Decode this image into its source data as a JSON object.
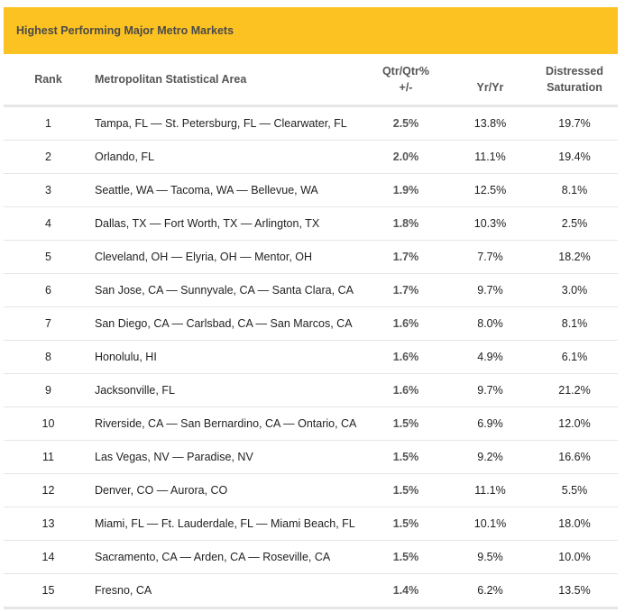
{
  "title": "Highest Performing Major Metro Markets",
  "colors": {
    "banner": "#fcc221",
    "header_text": "#555555",
    "divider": "#e6e6e6"
  },
  "columns": {
    "rank": "Rank",
    "area": "Metropolitan Statistical Area",
    "qtr_line1": "Qtr/Qtr%",
    "qtr_line2": "+/-",
    "yr": "Yr/Yr",
    "dist_line1": "Distressed",
    "dist_line2": "Saturation"
  },
  "rows": [
    {
      "rank": "1",
      "area": "Tampa, FL — St. Petersburg, FL — Clearwater, FL",
      "qtr": "2.5%",
      "yr": "13.8%",
      "dist": "19.7%"
    },
    {
      "rank": "2",
      "area": "Orlando, FL",
      "qtr": "2.0%",
      "yr": "11.1%",
      "dist": "19.4%"
    },
    {
      "rank": "3",
      "area": "Seattle, WA — Tacoma, WA — Bellevue, WA",
      "qtr": "1.9%",
      "yr": "12.5%",
      "dist": "8.1%"
    },
    {
      "rank": "4",
      "area": "Dallas, TX — Fort Worth, TX — Arlington, TX",
      "qtr": "1.8%",
      "yr": "10.3%",
      "dist": "2.5%"
    },
    {
      "rank": "5",
      "area": "Cleveland, OH — Elyria, OH — Mentor, OH",
      "qtr": "1.7%",
      "yr": "7.7%",
      "dist": "18.2%"
    },
    {
      "rank": "6",
      "area": "San Jose, CA — Sunnyvale, CA — Santa Clara, CA",
      "qtr": "1.7%",
      "yr": "9.7%",
      "dist": "3.0%"
    },
    {
      "rank": "7",
      "area": "San Diego, CA — Carlsbad, CA — San Marcos, CA",
      "qtr": "1.6%",
      "yr": "8.0%",
      "dist": "8.1%"
    },
    {
      "rank": "8",
      "area": "Honolulu, HI",
      "qtr": "1.6%",
      "yr": "4.9%",
      "dist": "6.1%"
    },
    {
      "rank": "9",
      "area": "Jacksonville, FL",
      "qtr": "1.6%",
      "yr": "9.7%",
      "dist": "21.2%"
    },
    {
      "rank": "10",
      "area": "Riverside, CA — San Bernardino, CA — Ontario, CA",
      "qtr": "1.5%",
      "yr": "6.9%",
      "dist": "12.0%"
    },
    {
      "rank": "11",
      "area": "Las Vegas, NV — Paradise, NV",
      "qtr": "1.5%",
      "yr": "9.2%",
      "dist": "16.6%"
    },
    {
      "rank": "12",
      "area": "Denver, CO — Aurora, CO",
      "qtr": "1.5%",
      "yr": "11.1%",
      "dist": "5.5%"
    },
    {
      "rank": "13",
      "area": "Miami, FL — Ft. Lauderdale, FL — Miami Beach, FL",
      "qtr": "1.5%",
      "yr": "10.1%",
      "dist": "18.0%"
    },
    {
      "rank": "14",
      "area": "Sacramento, CA — Arden, CA — Roseville, CA",
      "qtr": "1.5%",
      "yr": "9.5%",
      "dist": "10.0%"
    },
    {
      "rank": "15",
      "area": "Fresno, CA",
      "qtr": "1.4%",
      "yr": "6.2%",
      "dist": "13.5%"
    }
  ]
}
